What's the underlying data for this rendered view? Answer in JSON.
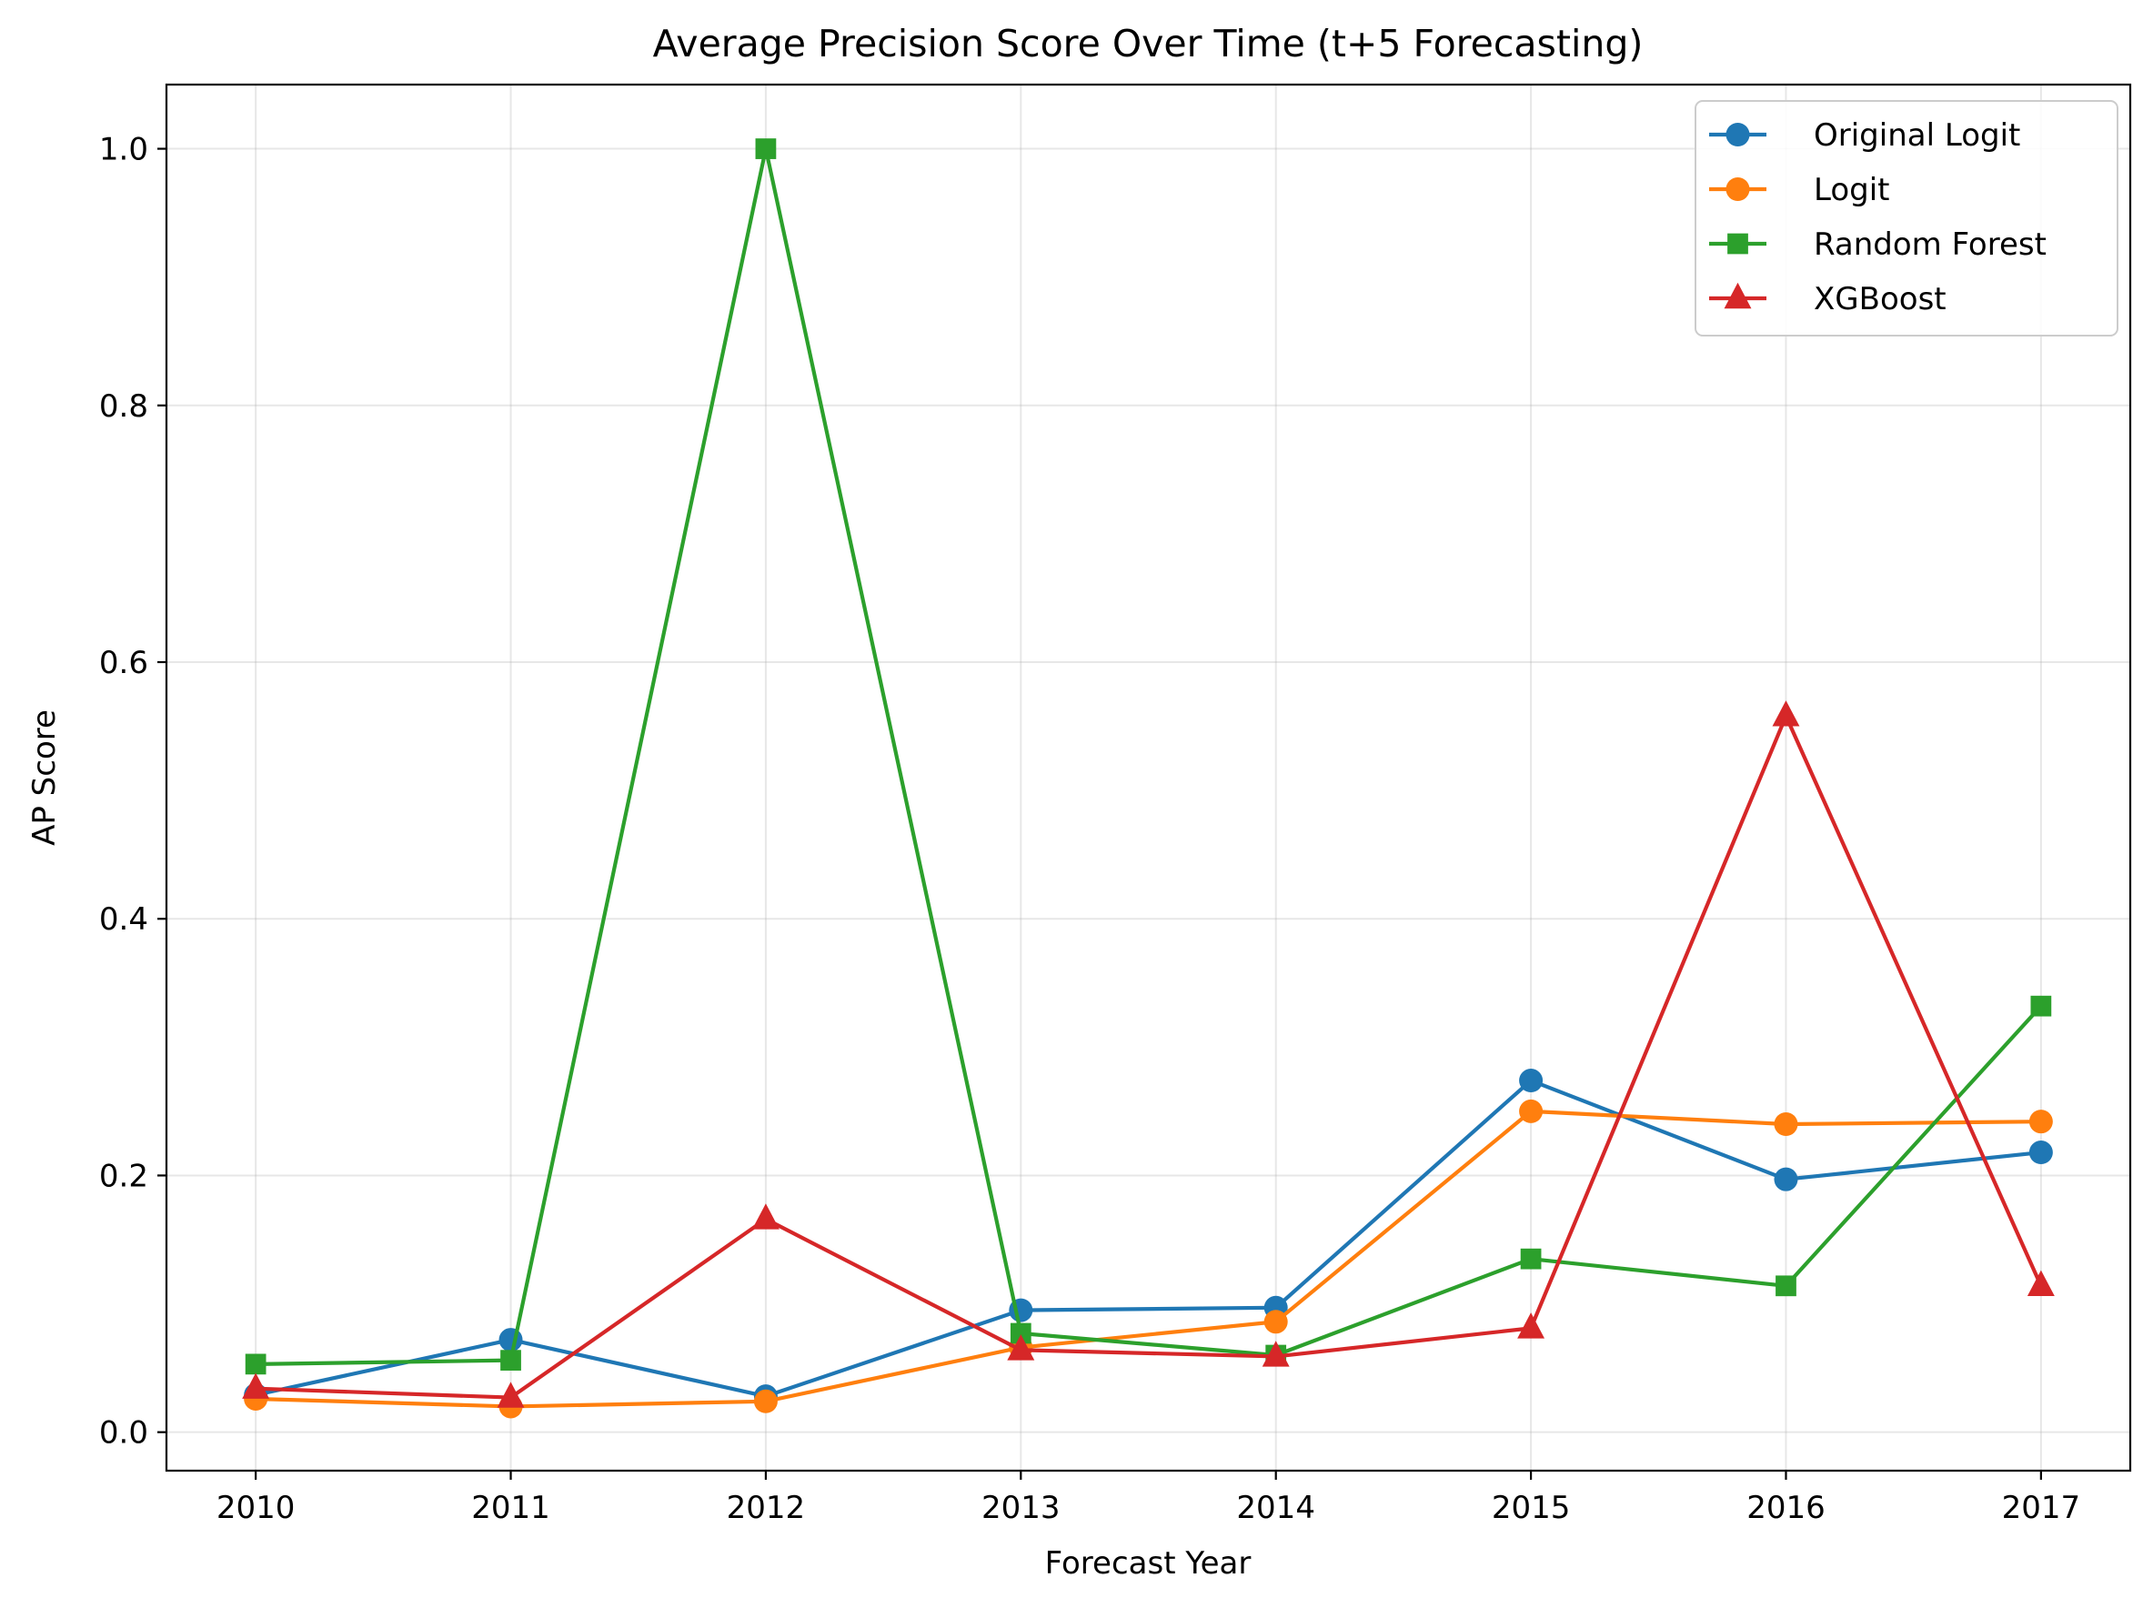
{
  "chart_data": {
    "type": "line",
    "title": "Average Precision Score Over Time (t+5 Forecasting)",
    "xlabel": "Forecast Year",
    "ylabel": "AP Score",
    "x": [
      2010,
      2011,
      2012,
      2013,
      2014,
      2015,
      2016,
      2017
    ],
    "x_tick_labels": [
      "2010",
      "2011",
      "2012",
      "2013",
      "2014",
      "2015",
      "2016",
      "2017"
    ],
    "y_ticks": [
      0.0,
      0.2,
      0.4,
      0.6,
      0.8,
      1.0
    ],
    "y_tick_labels": [
      "0.0",
      "0.2",
      "0.4",
      "0.6",
      "0.8",
      "1.0"
    ],
    "xlim": [
      2009.65,
      2017.35
    ],
    "ylim": [
      -0.03,
      1.05
    ],
    "grid": true,
    "legend_position": "top-right",
    "series": [
      {
        "name": "Original Logit",
        "color": "#1f77b4",
        "marker": "circle",
        "values": [
          0.029,
          0.072,
          0.028,
          0.095,
          0.097,
          0.274,
          0.197,
          0.218
        ]
      },
      {
        "name": "Logit",
        "color": "#ff7f0e",
        "marker": "circle",
        "values": [
          0.026,
          0.02,
          0.024,
          0.066,
          0.086,
          0.25,
          0.24,
          0.242
        ]
      },
      {
        "name": "Random Forest",
        "color": "#2ca02c",
        "marker": "square",
        "values": [
          0.053,
          0.056,
          1.0,
          0.077,
          0.06,
          0.135,
          0.114,
          0.332
        ]
      },
      {
        "name": "XGBoost",
        "color": "#d62728",
        "marker": "triangle",
        "values": [
          0.034,
          0.027,
          0.166,
          0.064,
          0.059,
          0.081,
          0.558,
          0.114
        ]
      }
    ]
  }
}
